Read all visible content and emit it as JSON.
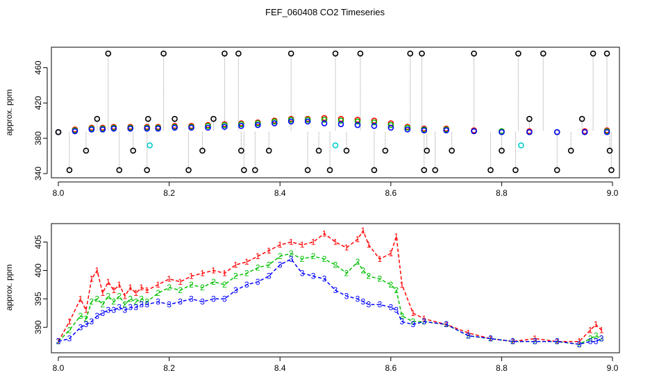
{
  "title": "FEF_060408  CO2 Timeseries",
  "colors": {
    "series1": "#ff0000",
    "series2": "#00c000",
    "series3": "#0000ff",
    "outlier": "#000000",
    "flagged": "#00cccc",
    "dropline": "#9a9a9a"
  },
  "chart_data": [
    {
      "type": "scatter",
      "ylabel": "approx. ppm",
      "xlim": [
        8.0,
        9.0
      ],
      "ylim": [
        340,
        480
      ],
      "xticks": [
        "8.0",
        "8.2",
        "8.4",
        "8.6",
        "8.8",
        "9.0"
      ],
      "yticks": [
        "340",
        "380",
        "420",
        "460"
      ],
      "grid": false,
      "series": [
        {
          "marker": "circle",
          "color": "red",
          "x": [
            8.0,
            8.03,
            8.06,
            8.08,
            8.1,
            8.13,
            8.16,
            8.18,
            8.21,
            8.24,
            8.27,
            8.3,
            8.33,
            8.36,
            8.39,
            8.42,
            8.45,
            8.48,
            8.51,
            8.54,
            8.57,
            8.6,
            8.63,
            8.66,
            8.7,
            8.75,
            8.8,
            8.85,
            8.9,
            8.95,
            8.99
          ],
          "y": [
            387,
            390,
            392,
            392,
            393,
            393,
            393,
            393,
            394,
            394,
            395,
            396,
            397,
            398,
            400,
            402,
            402,
            403,
            402,
            401,
            400,
            397,
            393,
            391,
            391,
            389,
            388,
            388,
            387,
            388,
            389
          ]
        },
        {
          "marker": "circle",
          "color": "green",
          "x": [
            8.0,
            8.03,
            8.06,
            8.08,
            8.1,
            8.13,
            8.16,
            8.18,
            8.21,
            8.24,
            8.27,
            8.3,
            8.33,
            8.36,
            8.39,
            8.42,
            8.45,
            8.48,
            8.51,
            8.54,
            8.57,
            8.6,
            8.63,
            8.66,
            8.7,
            8.75,
            8.8,
            8.85,
            8.9,
            8.95,
            8.99
          ],
          "y": [
            387,
            389,
            391,
            391,
            392,
            392,
            392,
            392,
            393,
            393,
            394,
            395,
            396,
            397,
            399,
            401,
            401,
            401,
            400,
            399,
            398,
            395,
            392,
            390,
            390,
            388,
            388,
            387,
            387,
            387,
            388
          ]
        },
        {
          "marker": "circle",
          "color": "blue",
          "x": [
            8.0,
            8.03,
            8.06,
            8.08,
            8.1,
            8.13,
            8.16,
            8.18,
            8.21,
            8.24,
            8.27,
            8.3,
            8.33,
            8.36,
            8.39,
            8.42,
            8.45,
            8.48,
            8.51,
            8.54,
            8.57,
            8.6,
            8.63,
            8.66,
            8.7,
            8.75,
            8.8,
            8.85,
            8.9,
            8.95,
            8.99
          ],
          "y": [
            387,
            388,
            390,
            390,
            391,
            391,
            391,
            391,
            392,
            392,
            392,
            393,
            394,
            395,
            397,
            399,
            399,
            397,
            396,
            395,
            394,
            392,
            390,
            389,
            389,
            388,
            387,
            387,
            387,
            387,
            387
          ]
        },
        {
          "marker": "circle",
          "color": "black",
          "x": [
            8.0,
            8.02,
            8.05,
            8.07,
            8.09,
            8.11,
            8.135,
            8.16,
            8.162,
            8.19,
            8.21,
            8.235,
            8.26,
            8.28,
            8.3,
            8.325,
            8.33,
            8.335,
            8.355,
            8.38,
            8.42,
            8.45,
            8.47,
            8.49,
            8.5,
            8.52,
            8.545,
            8.57,
            8.59,
            8.635,
            8.656,
            8.66,
            8.665,
            8.68,
            8.71,
            8.75,
            8.78,
            8.8,
            8.825,
            8.83,
            8.85,
            8.875,
            8.9,
            8.925,
            8.945,
            8.965,
            8.99,
            8.995,
            8.998
          ],
          "y": [
            387,
            344,
            366,
            402,
            476,
            344,
            366,
            344,
            402,
            476,
            402,
            344,
            366,
            402,
            476,
            476,
            366,
            344,
            344,
            366,
            476,
            344,
            366,
            344,
            476,
            366,
            476,
            344,
            366,
            476,
            476,
            344,
            366,
            344,
            366,
            476,
            344,
            366,
            344,
            476,
            402,
            476,
            344,
            366,
            402,
            476,
            476,
            366,
            344
          ]
        },
        {
          "marker": "circle",
          "color": "cyan",
          "x": [
            8.165,
            8.5,
            8.835
          ],
          "y": [
            372,
            372,
            372
          ]
        }
      ]
    },
    {
      "type": "line",
      "ylabel": "approx. ppm",
      "xlim": [
        8.0,
        9.0
      ],
      "ylim": [
        386,
        408
      ],
      "xticks": [
        "8.0",
        "8.2",
        "8.4",
        "8.6",
        "8.8",
        "9.0"
      ],
      "yticks": [
        "390",
        "395",
        "400",
        "405"
      ],
      "grid": false,
      "series": [
        {
          "marker": "1",
          "color": "red",
          "x": [
            8.0,
            8.02,
            8.04,
            8.05,
            8.06,
            8.07,
            8.08,
            8.09,
            8.1,
            8.11,
            8.12,
            8.13,
            8.14,
            8.15,
            8.16,
            8.18,
            8.2,
            8.22,
            8.24,
            8.26,
            8.28,
            8.3,
            8.32,
            8.34,
            8.36,
            8.38,
            8.4,
            8.42,
            8.44,
            8.46,
            8.48,
            8.5,
            8.52,
            8.54,
            8.55,
            8.56,
            8.58,
            8.6,
            8.61,
            8.62,
            8.64,
            8.66,
            8.7,
            8.74,
            8.78,
            8.82,
            8.86,
            8.9,
            8.94,
            8.96,
            8.97,
            8.98
          ],
          "y": [
            387.5,
            391.0,
            395.0,
            393.0,
            398.5,
            400.0,
            396.0,
            398.0,
            396.5,
            397.5,
            395.5,
            397.0,
            396.0,
            397.0,
            396.5,
            397.5,
            398.5,
            398.0,
            399.0,
            399.5,
            400.0,
            399.5,
            401.0,
            401.5,
            402.5,
            403.5,
            404.5,
            405.0,
            404.5,
            405.0,
            406.5,
            405.0,
            404.0,
            405.5,
            407.0,
            404.5,
            402.0,
            403.0,
            406.0,
            397.5,
            392.5,
            391.5,
            390.5,
            389.0,
            388.0,
            387.5,
            388.0,
            387.5,
            387.5,
            389.5,
            390.5,
            389.5
          ]
        },
        {
          "marker": "2",
          "color": "green",
          "x": [
            8.0,
            8.02,
            8.04,
            8.05,
            8.06,
            8.07,
            8.08,
            8.09,
            8.1,
            8.11,
            8.12,
            8.13,
            8.14,
            8.15,
            8.16,
            8.18,
            8.2,
            8.22,
            8.24,
            8.26,
            8.28,
            8.3,
            8.32,
            8.34,
            8.36,
            8.38,
            8.4,
            8.42,
            8.44,
            8.46,
            8.48,
            8.5,
            8.52,
            8.54,
            8.55,
            8.56,
            8.58,
            8.6,
            8.61,
            8.62,
            8.64,
            8.66,
            8.7,
            8.74,
            8.78,
            8.82,
            8.86,
            8.9,
            8.94,
            8.96,
            8.97,
            8.98
          ],
          "y": [
            387.5,
            389.5,
            392.0,
            391.5,
            394.5,
            395.0,
            394.0,
            395.5,
            394.5,
            395.5,
            394.0,
            395.0,
            394.5,
            395.0,
            394.5,
            396.0,
            397.0,
            396.5,
            397.5,
            397.0,
            398.0,
            397.5,
            399.0,
            399.5,
            400.5,
            401.0,
            402.5,
            403.0,
            402.0,
            402.5,
            402.0,
            401.0,
            399.5,
            401.5,
            400.0,
            399.0,
            398.5,
            397.5,
            396.5,
            392.0,
            391.0,
            391.0,
            390.5,
            388.5,
            388.0,
            387.5,
            387.5,
            387.5,
            387.0,
            388.0,
            388.5,
            388.0
          ]
        },
        {
          "marker": "3",
          "color": "blue",
          "x": [
            8.0,
            8.02,
            8.04,
            8.05,
            8.06,
            8.07,
            8.08,
            8.09,
            8.1,
            8.11,
            8.12,
            8.13,
            8.14,
            8.15,
            8.16,
            8.18,
            8.2,
            8.22,
            8.24,
            8.26,
            8.28,
            8.3,
            8.32,
            8.34,
            8.36,
            8.38,
            8.4,
            8.42,
            8.44,
            8.46,
            8.48,
            8.5,
            8.52,
            8.54,
            8.55,
            8.56,
            8.58,
            8.6,
            8.61,
            8.62,
            8.64,
            8.66,
            8.7,
            8.74,
            8.78,
            8.82,
            8.86,
            8.9,
            8.94,
            8.96,
            8.97,
            8.98
          ],
          "y": [
            387.5,
            388.0,
            390.0,
            390.5,
            391.0,
            392.0,
            392.5,
            393.0,
            393.0,
            393.5,
            393.0,
            393.5,
            393.5,
            394.0,
            394.0,
            394.5,
            394.0,
            394.5,
            395.0,
            394.5,
            395.0,
            395.0,
            396.5,
            397.5,
            398.0,
            399.0,
            401.0,
            402.0,
            399.5,
            399.0,
            398.5,
            396.5,
            395.5,
            395.0,
            394.5,
            394.0,
            394.0,
            393.5,
            393.0,
            391.0,
            390.5,
            391.0,
            390.5,
            388.5,
            388.0,
            387.5,
            387.5,
            387.5,
            387.0,
            387.5,
            387.5,
            388.0
          ]
        }
      ]
    }
  ]
}
